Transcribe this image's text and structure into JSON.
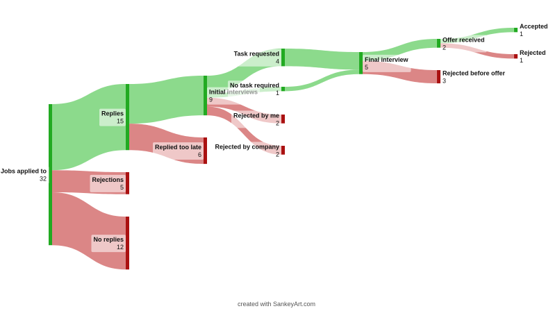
{
  "colors": {
    "positive_node": "#22aa22",
    "negative_node": "#aa1111",
    "positive_link": "#86d886",
    "negative_link": "#d98080",
    "label_box": "#ffffff"
  },
  "nodes": [
    {
      "id": "jobs",
      "label": "Jobs applied to",
      "value": "32",
      "kind": "positive"
    },
    {
      "id": "replies",
      "label": "Replies",
      "value": "15",
      "kind": "positive"
    },
    {
      "id": "rejections",
      "label": "Rejections",
      "value": "5",
      "kind": "negative"
    },
    {
      "id": "noreplies",
      "label": "No replies",
      "value": "12",
      "kind": "negative"
    },
    {
      "id": "initial",
      "label": "Initial interviews",
      "value": "9",
      "kind": "positive"
    },
    {
      "id": "toolate",
      "label": "Replied too late",
      "value": "6",
      "kind": "negative"
    },
    {
      "id": "task",
      "label": "Task requested",
      "value": "4",
      "kind": "positive"
    },
    {
      "id": "notask",
      "label": "No task required",
      "value": "1",
      "kind": "positive"
    },
    {
      "id": "rejme",
      "label": "Rejected by me",
      "value": "2",
      "kind": "negative"
    },
    {
      "id": "rejco",
      "label": "Rejected by company",
      "value": "2",
      "kind": "negative"
    },
    {
      "id": "final",
      "label": "Final interview",
      "value": "5",
      "kind": "positive"
    },
    {
      "id": "offer",
      "label": "Offer received",
      "value": "2",
      "kind": "positive"
    },
    {
      "id": "rejbefore",
      "label": "Rejected before offer",
      "value": "3",
      "kind": "negative"
    },
    {
      "id": "accepted",
      "label": "Accepted",
      "value": "1",
      "kind": "positive"
    },
    {
      "id": "rejected",
      "label": "Rejected",
      "value": "1",
      "kind": "negative"
    }
  ],
  "flows": [
    {
      "from": "jobs",
      "to": "replies",
      "value": 15
    },
    {
      "from": "jobs",
      "to": "rejections",
      "value": 5
    },
    {
      "from": "jobs",
      "to": "noreplies",
      "value": 12
    },
    {
      "from": "replies",
      "to": "initial",
      "value": 9
    },
    {
      "from": "replies",
      "to": "toolate",
      "value": 6
    },
    {
      "from": "initial",
      "to": "task",
      "value": 4
    },
    {
      "from": "initial",
      "to": "notask",
      "value": 1
    },
    {
      "from": "initial",
      "to": "rejme",
      "value": 2
    },
    {
      "from": "initial",
      "to": "rejco",
      "value": 2
    },
    {
      "from": "task",
      "to": "final",
      "value": 4
    },
    {
      "from": "notask",
      "to": "final",
      "value": 1
    },
    {
      "from": "final",
      "to": "offer",
      "value": 2
    },
    {
      "from": "final",
      "to": "rejbefore",
      "value": 3
    },
    {
      "from": "offer",
      "to": "accepted",
      "value": 1
    },
    {
      "from": "offer",
      "to": "rejected",
      "value": 1
    }
  ],
  "credit": "created with SankeyArt.com"
}
